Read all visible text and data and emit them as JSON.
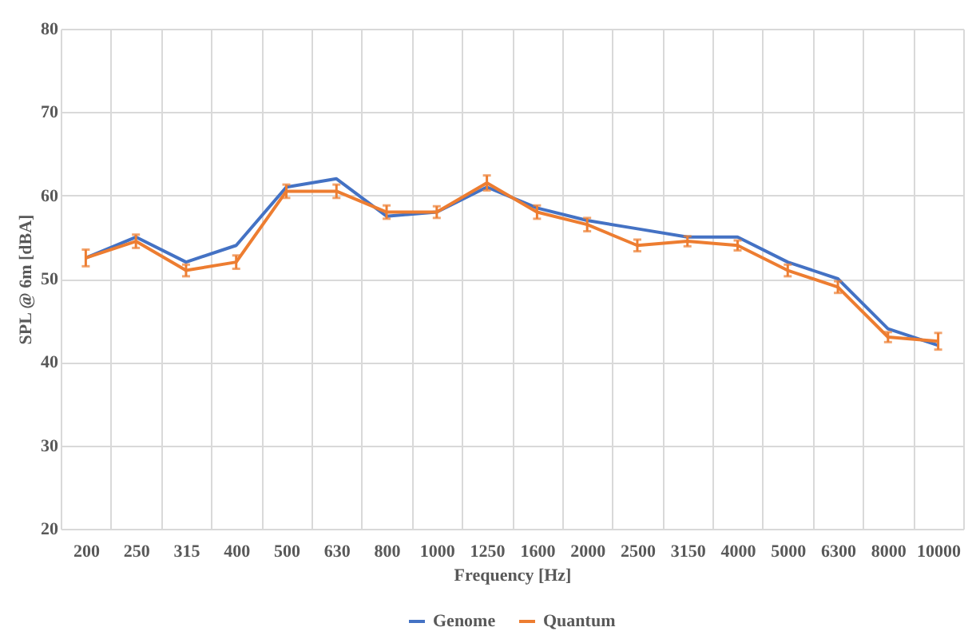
{
  "chart_data": {
    "type": "line",
    "xlabel": "Frequency [Hz]",
    "ylabel": "SPL @ 6m [dBA]",
    "categories": [
      "200",
      "250",
      "315",
      "400",
      "500",
      "630",
      "800",
      "1000",
      "1250",
      "1600",
      "2000",
      "2500",
      "3150",
      "4000",
      "5000",
      "6300",
      "8000",
      "10000"
    ],
    "series": [
      {
        "name": "Genome",
        "color": "#4472c4",
        "values": [
          52.5,
          55,
          52,
          54,
          61,
          62,
          57.5,
          58,
          61,
          58.5,
          57,
          56,
          55,
          55,
          52,
          50,
          44,
          42
        ]
      },
      {
        "name": "Quantum",
        "color": "#ed7d31",
        "values": [
          52.5,
          54.5,
          51,
          52,
          60.5,
          60.5,
          58,
          58,
          61.5,
          58,
          56.5,
          54,
          54.5,
          54,
          51,
          49,
          43,
          42.5
        ],
        "errors": [
          1,
          0.8,
          0.7,
          0.8,
          0.8,
          0.8,
          0.8,
          0.7,
          0.9,
          0.8,
          0.8,
          0.7,
          0.6,
          0.6,
          0.7,
          0.7,
          0.6,
          1
        ]
      }
    ],
    "ylim": [
      20,
      80
    ],
    "yticks": [
      20,
      30,
      40,
      50,
      60,
      70,
      80
    ],
    "grid": true,
    "legend": "bottom",
    "marker": "none",
    "line_style": "solid"
  }
}
